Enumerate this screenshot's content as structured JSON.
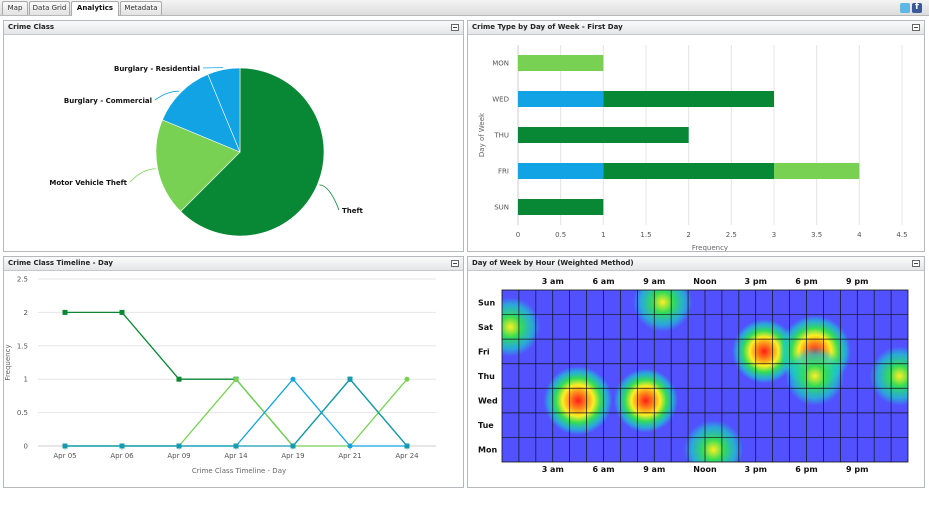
{
  "tabs": [
    {
      "label": "Map",
      "active": false
    },
    {
      "label": "Data Grid",
      "active": false
    },
    {
      "label": "Analytics",
      "active": true
    },
    {
      "label": "Metadata",
      "active": false
    }
  ],
  "toolbar_icons": [
    "twitter-icon",
    "facebook-icon"
  ],
  "colors": {
    "dark_green": "#088734",
    "light_green": "#78d152",
    "blue": "#11a3e4"
  },
  "panels": {
    "crime_class": {
      "title": "Crime Class"
    },
    "crime_type_by_day": {
      "title": "Crime Type by Day of Week - First Day"
    },
    "crime_timeline": {
      "title": "Crime Class Timeline - Day"
    },
    "day_by_hour": {
      "title": "Day of Week by Hour (Weighted Method)"
    }
  },
  "chart_data": [
    {
      "type": "pie",
      "title": "Crime Class",
      "labels": [
        "Theft",
        "Motor Vehicle Theft",
        "Burglary - Commercial",
        "Burglary - Residential"
      ],
      "values": [
        62.5,
        18.75,
        12.5,
        6.25
      ],
      "colors": [
        "#088734",
        "#78d152",
        "#11a3e4",
        "#11a3e4"
      ]
    },
    {
      "type": "bar",
      "orientation": "horizontal",
      "stacked": true,
      "title": "Crime Type by Day of Week - First Day",
      "categories": [
        "MON",
        "WED",
        "THU",
        "FRI",
        "SUN"
      ],
      "series": [
        {
          "color": "#11a3e4",
          "values": [
            0,
            1,
            0,
            1,
            0
          ]
        },
        {
          "color": "#088734",
          "values": [
            0,
            2,
            2,
            2,
            1
          ]
        },
        {
          "color": "#78d152",
          "values": [
            1,
            0,
            0,
            1,
            0
          ]
        }
      ],
      "xlabel": "Frequency",
      "ylabel": "Day of Week",
      "xlim": [
        0,
        4.5
      ],
      "xticks": [
        "0",
        "0.5",
        "1",
        "1.5",
        "2",
        "2.5",
        "3",
        "3.5",
        "4",
        "4.5"
      ]
    },
    {
      "type": "line",
      "title": "Crime Class Timeline - Day",
      "categories": [
        "Apr 05",
        "Apr 06",
        "Apr 09",
        "Apr 14",
        "Apr 19",
        "Apr 21",
        "Apr 24"
      ],
      "series": [
        {
          "color": "#088734",
          "values": [
            2,
            2,
            1,
            1,
            0,
            1,
            0
          ]
        },
        {
          "color": "#78d152",
          "values": [
            0,
            0,
            0,
            1,
            0,
            0,
            1
          ]
        },
        {
          "color": "#11a3e4",
          "values": [
            0,
            0,
            0,
            0,
            1,
            0,
            0
          ]
        },
        {
          "color": "#169ab0",
          "values": [
            0,
            0,
            0,
            0,
            0,
            1,
            0
          ]
        }
      ],
      "xlabel": "Crime Class Timeline - Day",
      "ylabel": "Frequency",
      "ylim": [
        0,
        2.5
      ],
      "yticks": [
        "0",
        "0.5",
        "1",
        "1.5",
        "2",
        "2.5"
      ]
    },
    {
      "type": "heatmap",
      "title": "Day of Week by Hour (Weighted Method)",
      "days": [
        "Sun",
        "Sat",
        "Fri",
        "Thu",
        "Wed",
        "Tue",
        "Mon"
      ],
      "hour_labels": [
        "3 am",
        "6 am",
        "9 am",
        "Noon",
        "3 pm",
        "6 pm",
        "9 pm"
      ],
      "hotspots": [
        {
          "day": "Sun",
          "hour": 9,
          "weight": 0.6
        },
        {
          "day": "Sat",
          "hour": 0,
          "weight": 0.6
        },
        {
          "day": "Fri",
          "hour": 15,
          "weight": 0.75
        },
        {
          "day": "Fri",
          "hour": 18,
          "weight": 1.0
        },
        {
          "day": "Thu",
          "hour": 18,
          "weight": 0.6
        },
        {
          "day": "Thu",
          "hour": 23,
          "weight": 0.6
        },
        {
          "day": "Wed",
          "hour": 4,
          "weight": 0.9
        },
        {
          "day": "Wed",
          "hour": 8,
          "weight": 0.75
        },
        {
          "day": "Mon",
          "hour": 12,
          "weight": 0.6
        }
      ]
    }
  ]
}
